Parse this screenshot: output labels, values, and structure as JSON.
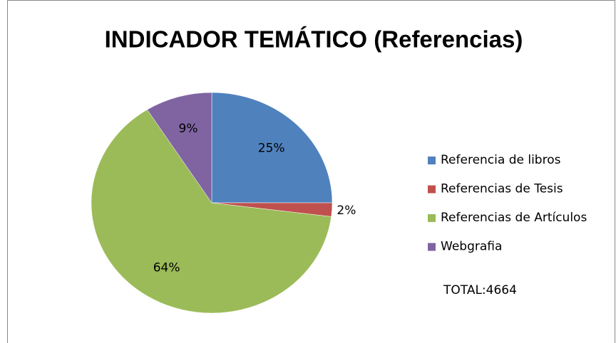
{
  "chart_data": {
    "type": "pie",
    "title": "INDICADOR TEMÁTICO (Referencias)",
    "categories": [
      "Referencia de libros",
      "Referencias de Tesis",
      "Referencias de Artículos",
      "Webgrafia"
    ],
    "values": [
      25,
      2,
      64,
      9
    ],
    "value_labels": [
      "25%",
      "2%",
      "64%",
      "9%"
    ],
    "colors": [
      "#4f81bd",
      "#c0504d",
      "#9bbb59",
      "#8064a2"
    ],
    "legend": "right",
    "annotation": "TOTAL:4664"
  }
}
